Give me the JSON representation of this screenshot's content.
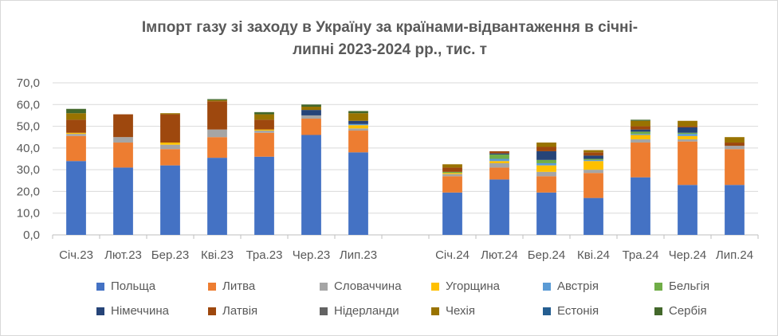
{
  "chart_data": {
    "type": "bar",
    "stacked": true,
    "title_line1": "Імпорт газу зі заходу в Україну за країнами-відвантаження в січні-",
    "title_line2": "липні 2023-2024 рр., тис. т",
    "xlabel": "",
    "ylabel": "",
    "ylim": [
      0,
      70
    ],
    "yticks": [
      "0,0",
      "10,0",
      "20,0",
      "30,0",
      "40,0",
      "50,0",
      "60,0",
      "70,0"
    ],
    "grid": true,
    "legend_position": "bottom",
    "categories": [
      "Січ.23",
      "Лют.23",
      "Бер.23",
      "Кві.23",
      "Тра.23",
      "Чер.23",
      "Лип.23",
      "",
      "Січ.24",
      "Лют.24",
      "Бер.24",
      "Кві.24",
      "Тра.24",
      "Чер.24",
      "Лип.24"
    ],
    "series": [
      {
        "name": "Польща",
        "color": "#4472C4",
        "values": [
          34.0,
          31.0,
          32.0,
          35.5,
          36.0,
          46.0,
          38.0,
          null,
          19.5,
          25.5,
          19.5,
          17.0,
          26.5,
          23.0,
          23.0
        ]
      },
      {
        "name": "Литва",
        "color": "#ED7D31",
        "values": [
          11.5,
          11.5,
          7.5,
          9.5,
          11.0,
          7.5,
          10.0,
          null,
          7.5,
          5.5,
          7.5,
          11.5,
          16.0,
          20.0,
          16.5
        ]
      },
      {
        "name": "Словаччина",
        "color": "#A5A5A5",
        "values": [
          1.0,
          2.5,
          2.0,
          3.5,
          1.0,
          1.5,
          1.0,
          null,
          1.0,
          2.0,
          2.0,
          1.5,
          1.5,
          1.0,
          1.5
        ]
      },
      {
        "name": "Угорщина",
        "color": "#FFC000",
        "values": [
          0.5,
          0.0,
          1.0,
          0.0,
          0.5,
          0.0,
          1.5,
          null,
          0.5,
          1.0,
          3.0,
          4.0,
          2.0,
          1.5,
          0.0
        ]
      },
      {
        "name": "Австрія",
        "color": "#5B9BD5",
        "values": [
          0.0,
          0.0,
          0.0,
          0.0,
          0.0,
          0.0,
          0.5,
          null,
          0.0,
          1.0,
          1.0,
          0.5,
          0.5,
          1.0,
          0.0
        ]
      },
      {
        "name": "Бельгія",
        "color": "#70AD47",
        "values": [
          0.0,
          0.0,
          0.0,
          0.0,
          0.0,
          0.0,
          0.0,
          null,
          0.5,
          2.0,
          1.5,
          0.5,
          1.0,
          0.5,
          0.0
        ]
      },
      {
        "name": "Німеччина",
        "color": "#264478",
        "values": [
          0.0,
          0.0,
          0.0,
          0.0,
          0.0,
          2.5,
          1.5,
          null,
          0.0,
          0.5,
          4.0,
          1.5,
          1.0,
          2.5,
          0.0
        ]
      },
      {
        "name": "Латвія",
        "color": "#9E480E",
        "values": [
          6.0,
          10.5,
          13.0,
          13.0,
          4.5,
          0.0,
          0.0,
          null,
          2.0,
          1.0,
          2.0,
          1.5,
          1.5,
          0.5,
          1.5
        ]
      },
      {
        "name": "Нідерланди",
        "color": "#636363",
        "values": [
          0.0,
          0.0,
          0.0,
          0.0,
          0.0,
          0.0,
          0.0,
          null,
          0.0,
          0.0,
          0.0,
          0.0,
          0.0,
          0.0,
          0.0
        ]
      },
      {
        "name": "Чехія",
        "color": "#997300",
        "values": [
          3.0,
          0.0,
          0.5,
          0.5,
          2.5,
          1.5,
          3.5,
          null,
          1.5,
          0.0,
          2.0,
          1.0,
          2.5,
          2.5,
          2.5
        ]
      },
      {
        "name": "Естонія",
        "color": "#255E91",
        "values": [
          0.0,
          0.0,
          0.0,
          0.0,
          0.0,
          0.0,
          0.0,
          null,
          0.0,
          0.0,
          0.0,
          0.0,
          0.0,
          0.0,
          0.0
        ]
      },
      {
        "name": "Сербія",
        "color": "#43682B",
        "values": [
          2.0,
          0.0,
          0.0,
          0.5,
          1.0,
          1.0,
          1.0,
          null,
          0.0,
          0.0,
          0.0,
          0.0,
          0.5,
          0.0,
          0.0
        ]
      }
    ]
  }
}
